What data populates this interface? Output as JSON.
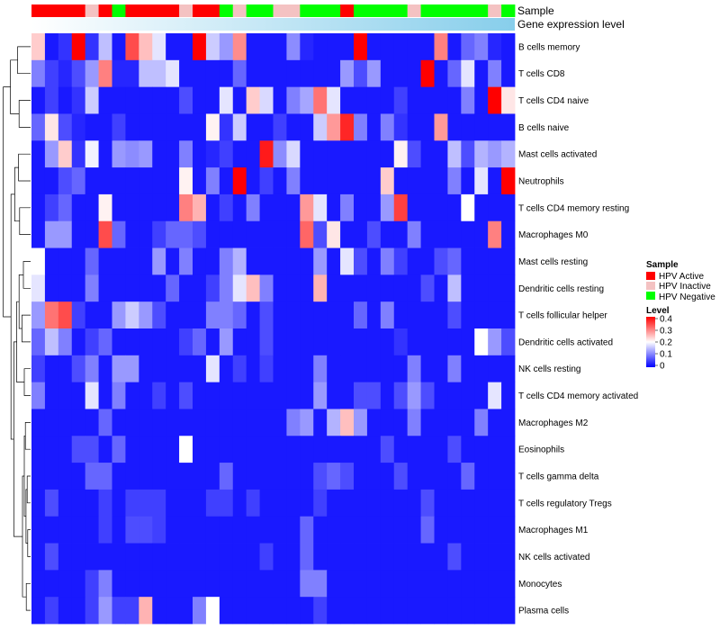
{
  "chart_data": {
    "type": "heatmap",
    "annotation_rows": [
      "Sample",
      "Gene expression level"
    ],
    "row_labels": [
      "B cells memory",
      "T cells CD8",
      "T cells CD4 naive",
      "B cells naive",
      "Mast cells activated",
      "Neutrophils",
      "T cells CD4 memory resting",
      "Macrophages M0",
      "Mast cells resting",
      "Dendritic cells resting",
      "T cells follicular helper",
      "Dendritic cells activated",
      "NK cells resting",
      "T cells CD4 memory activated",
      "Macrophages M2",
      "Eosinophils",
      "T cells gamma delta",
      "T cells regulatory  Tregs",
      "Macrophages M1",
      "NK cells activated",
      "Monocytes",
      "Plasma cells"
    ],
    "sample_groups": [
      "A",
      "A",
      "A",
      "A",
      "I",
      "A",
      "N",
      "A",
      "A",
      "A",
      "A",
      "I",
      "A",
      "A",
      "N",
      "I",
      "N",
      "N",
      "I",
      "I",
      "N",
      "N",
      "N",
      "A",
      "N",
      "N",
      "N",
      "N",
      "I",
      "N",
      "N",
      "N",
      "N",
      "N",
      "I",
      "N"
    ],
    "value_range": [
      0,
      0.4
    ],
    "colorscale": [
      "#0000ff",
      "#ffffff",
      "#ff0000"
    ],
    "colorscale_mid": 0.2,
    "values": [
      [
        0.24,
        0.02,
        0.04,
        0.4,
        0.04,
        0.15,
        0.02,
        0.34,
        0.25,
        0.18,
        0.02,
        0.02,
        0.4,
        0.16,
        0.12,
        0.29,
        0.02,
        0.02,
        0.02,
        0.11,
        0.03,
        0.02,
        0.02,
        0.02,
        0.4,
        0.02,
        0.02,
        0.02,
        0.02,
        0.02,
        0.3,
        0.02,
        0.08,
        0.1,
        0.03,
        0.02
      ],
      [
        0.1,
        0.05,
        0.03,
        0.06,
        0.12,
        0.3,
        0.03,
        0.03,
        0.15,
        0.15,
        0.18,
        0.02,
        0.02,
        0.02,
        0.02,
        0.08,
        0.02,
        0.02,
        0.02,
        0.02,
        0.02,
        0.02,
        0.02,
        0.12,
        0.06,
        0.12,
        0.02,
        0.02,
        0.02,
        0.4,
        0.02,
        0.08,
        0.18,
        0.02,
        0.1,
        0.02
      ],
      [
        0.02,
        0.05,
        0.02,
        0.04,
        0.16,
        0.02,
        0.02,
        0.02,
        0.02,
        0.02,
        0.02,
        0.06,
        0.02,
        0.02,
        0.18,
        0.02,
        0.24,
        0.17,
        0.02,
        0.1,
        0.13,
        0.31,
        0.18,
        0.02,
        0.02,
        0.02,
        0.02,
        0.05,
        0.02,
        0.02,
        0.02,
        0.02,
        0.1,
        0.02,
        0.4,
        0.22
      ],
      [
        0.08,
        0.22,
        0.06,
        0.03,
        0.02,
        0.02,
        0.05,
        0.02,
        0.02,
        0.02,
        0.02,
        0.02,
        0.02,
        0.21,
        0.04,
        0.16,
        0.02,
        0.02,
        0.05,
        0.02,
        0.02,
        0.16,
        0.28,
        0.37,
        0.1,
        0.02,
        0.1,
        0.04,
        0.02,
        0.02,
        0.28,
        0.02,
        0.02,
        0.02,
        0.02,
        0.02
      ],
      [
        0.02,
        0.12,
        0.24,
        0.04,
        0.19,
        0.02,
        0.12,
        0.11,
        0.12,
        0.02,
        0.02,
        0.1,
        0.02,
        0.03,
        0.05,
        0.02,
        0.02,
        0.38,
        0.11,
        0.17,
        0.02,
        0.02,
        0.02,
        0.02,
        0.02,
        0.02,
        0.02,
        0.21,
        0.06,
        0.02,
        0.02,
        0.15,
        0.06,
        0.14,
        0.12,
        0.14
      ],
      [
        0.02,
        0.02,
        0.06,
        0.08,
        0.02,
        0.02,
        0.02,
        0.02,
        0.02,
        0.02,
        0.02,
        0.21,
        0.02,
        0.1,
        0.02,
        0.4,
        0.02,
        0.05,
        0.02,
        0.1,
        0.02,
        0.02,
        0.02,
        0.02,
        0.02,
        0.02,
        0.24,
        0.02,
        0.02,
        0.02,
        0.02,
        0.1,
        0.02,
        0.18,
        0.02,
        0.4
      ],
      [
        0.02,
        0.05,
        0.08,
        0.02,
        0.02,
        0.21,
        0.02,
        0.02,
        0.02,
        0.02,
        0.02,
        0.3,
        0.26,
        0.02,
        0.05,
        0.02,
        0.1,
        0.02,
        0.02,
        0.02,
        0.28,
        0.18,
        0.02,
        0.1,
        0.02,
        0.02,
        0.12,
        0.35,
        0.02,
        0.02,
        0.02,
        0.02,
        0.2,
        0.02,
        0.02,
        0.02
      ],
      [
        0.02,
        0.12,
        0.12,
        0.02,
        0.02,
        0.34,
        0.08,
        0.02,
        0.02,
        0.05,
        0.08,
        0.08,
        0.06,
        0.02,
        0.02,
        0.02,
        0.02,
        0.02,
        0.02,
        0.02,
        0.32,
        0.06,
        0.22,
        0.02,
        0.02,
        0.06,
        0.02,
        0.02,
        0.1,
        0.02,
        0.02,
        0.02,
        0.02,
        0.02,
        0.3,
        0.02
      ],
      [
        0.2,
        0.02,
        0.02,
        0.02,
        0.08,
        0.02,
        0.02,
        0.02,
        0.02,
        0.12,
        0.02,
        0.1,
        0.02,
        0.02,
        0.1,
        0.14,
        0.02,
        0.02,
        0.02,
        0.02,
        0.02,
        0.12,
        0.02,
        0.18,
        0.06,
        0.02,
        0.1,
        0.05,
        0.02,
        0.02,
        0.06,
        0.08,
        0.02,
        0.02,
        0.02,
        0.02
      ],
      [
        0.18,
        0.02,
        0.02,
        0.02,
        0.1,
        0.02,
        0.02,
        0.02,
        0.02,
        0.02,
        0.08,
        0.02,
        0.02,
        0.05,
        0.1,
        0.18,
        0.25,
        0.1,
        0.02,
        0.02,
        0.02,
        0.26,
        0.02,
        0.02,
        0.02,
        0.02,
        0.02,
        0.02,
        0.02,
        0.06,
        0.02,
        0.15,
        0.02,
        0.02,
        0.02,
        0.02
      ],
      [
        0.12,
        0.31,
        0.34,
        0.05,
        0.02,
        0.02,
        0.12,
        0.16,
        0.12,
        0.06,
        0.02,
        0.02,
        0.02,
        0.1,
        0.1,
        0.08,
        0.02,
        0.06,
        0.02,
        0.02,
        0.02,
        0.02,
        0.02,
        0.02,
        0.08,
        0.02,
        0.1,
        0.02,
        0.02,
        0.02,
        0.02,
        0.06,
        0.02,
        0.02,
        0.02,
        0.02
      ],
      [
        0.08,
        0.15,
        0.1,
        0.02,
        0.05,
        0.08,
        0.02,
        0.02,
        0.02,
        0.02,
        0.02,
        0.05,
        0.08,
        0.02,
        0.12,
        0.02,
        0.02,
        0.06,
        0.02,
        0.02,
        0.02,
        0.02,
        0.02,
        0.02,
        0.02,
        0.02,
        0.02,
        0.04,
        0.02,
        0.02,
        0.02,
        0.02,
        0.02,
        0.2,
        0.12,
        0.06
      ],
      [
        0.05,
        0.02,
        0.02,
        0.06,
        0.1,
        0.02,
        0.12,
        0.12,
        0.02,
        0.02,
        0.02,
        0.02,
        0.02,
        0.18,
        0.02,
        0.05,
        0.02,
        0.05,
        0.02,
        0.02,
        0.02,
        0.1,
        0.02,
        0.02,
        0.02,
        0.02,
        0.02,
        0.02,
        0.1,
        0.02,
        0.02,
        0.1,
        0.02,
        0.02,
        0.02,
        0.02
      ],
      [
        0.1,
        0.02,
        0.02,
        0.02,
        0.18,
        0.02,
        0.1,
        0.02,
        0.02,
        0.05,
        0.02,
        0.06,
        0.02,
        0.02,
        0.02,
        0.02,
        0.02,
        0.02,
        0.02,
        0.02,
        0.02,
        0.12,
        0.02,
        0.02,
        0.06,
        0.06,
        0.02,
        0.06,
        0.12,
        0.06,
        0.02,
        0.02,
        0.02,
        0.02,
        0.18,
        0.02
      ],
      [
        0.02,
        0.02,
        0.02,
        0.02,
        0.02,
        0.08,
        0.02,
        0.02,
        0.02,
        0.02,
        0.02,
        0.02,
        0.02,
        0.02,
        0.02,
        0.02,
        0.02,
        0.02,
        0.02,
        0.1,
        0.12,
        0.02,
        0.14,
        0.25,
        0.12,
        0.02,
        0.02,
        0.02,
        0.1,
        0.02,
        0.02,
        0.02,
        0.02,
        0.1,
        0.02,
        0.02
      ],
      [
        0.02,
        0.02,
        0.02,
        0.06,
        0.06,
        0.02,
        0.08,
        0.02,
        0.02,
        0.02,
        0.02,
        0.2,
        0.02,
        0.02,
        0.02,
        0.02,
        0.02,
        0.02,
        0.02,
        0.02,
        0.02,
        0.02,
        0.02,
        0.02,
        0.02,
        0.02,
        0.06,
        0.02,
        0.02,
        0.02,
        0.02,
        0.06,
        0.02,
        0.02,
        0.02,
        0.02
      ],
      [
        0.02,
        0.02,
        0.02,
        0.02,
        0.08,
        0.08,
        0.02,
        0.02,
        0.02,
        0.02,
        0.02,
        0.02,
        0.02,
        0.02,
        0.08,
        0.02,
        0.02,
        0.02,
        0.02,
        0.02,
        0.02,
        0.06,
        0.08,
        0.06,
        0.02,
        0.02,
        0.02,
        0.06,
        0.02,
        0.02,
        0.02,
        0.02,
        0.08,
        0.02,
        0.02,
        0.02
      ],
      [
        0.02,
        0.06,
        0.02,
        0.02,
        0.02,
        0.05,
        0.02,
        0.05,
        0.05,
        0.05,
        0.02,
        0.02,
        0.02,
        0.05,
        0.05,
        0.02,
        0.05,
        0.02,
        0.02,
        0.02,
        0.02,
        0.05,
        0.02,
        0.02,
        0.02,
        0.02,
        0.02,
        0.02,
        0.02,
        0.06,
        0.02,
        0.02,
        0.02,
        0.02,
        0.02,
        0.02
      ],
      [
        0.02,
        0.02,
        0.02,
        0.02,
        0.02,
        0.05,
        0.02,
        0.06,
        0.06,
        0.05,
        0.02,
        0.02,
        0.02,
        0.02,
        0.02,
        0.02,
        0.02,
        0.02,
        0.02,
        0.02,
        0.08,
        0.02,
        0.02,
        0.02,
        0.02,
        0.02,
        0.02,
        0.02,
        0.02,
        0.08,
        0.02,
        0.02,
        0.02,
        0.02,
        0.02,
        0.02
      ],
      [
        0.02,
        0.06,
        0.02,
        0.02,
        0.02,
        0.02,
        0.02,
        0.02,
        0.02,
        0.02,
        0.02,
        0.02,
        0.02,
        0.02,
        0.02,
        0.02,
        0.02,
        0.05,
        0.02,
        0.02,
        0.08,
        0.02,
        0.02,
        0.02,
        0.02,
        0.02,
        0.02,
        0.02,
        0.02,
        0.02,
        0.02,
        0.06,
        0.02,
        0.02,
        0.02,
        0.02
      ],
      [
        0.02,
        0.02,
        0.02,
        0.02,
        0.05,
        0.1,
        0.02,
        0.02,
        0.02,
        0.02,
        0.02,
        0.02,
        0.02,
        0.02,
        0.02,
        0.02,
        0.02,
        0.02,
        0.02,
        0.02,
        0.1,
        0.1,
        0.02,
        0.02,
        0.02,
        0.02,
        0.02,
        0.02,
        0.02,
        0.02,
        0.02,
        0.02,
        0.02,
        0.02,
        0.02,
        0.02
      ],
      [
        0.02,
        0.05,
        0.02,
        0.02,
        0.05,
        0.12,
        0.05,
        0.05,
        0.26,
        0.02,
        0.02,
        0.02,
        0.1,
        0.2,
        0.02,
        0.02,
        0.02,
        0.02,
        0.02,
        0.02,
        0.02,
        0.05,
        0.02,
        0.02,
        0.02,
        0.02,
        0.02,
        0.02,
        0.02,
        0.02,
        0.02,
        0.02,
        0.02,
        0.02,
        0.02,
        0.02
      ]
    ],
    "legend": {
      "sample": {
        "title": "Sample",
        "items": [
          {
            "code": "A",
            "label": "HPV Active",
            "color": "#ff0000"
          },
          {
            "code": "I",
            "label": "HPV Inactive",
            "color": "#f4c2c2"
          },
          {
            "code": "N",
            "label": "HPV Negative",
            "color": "#00ff00"
          }
        ]
      },
      "level": {
        "title": "Level",
        "ticks": [
          "0.4",
          "0.3",
          "0.2",
          "0.1",
          "0"
        ]
      }
    },
    "gene_expression_bar": {
      "from": "#ffffff",
      "to": "#87ceeb"
    }
  }
}
